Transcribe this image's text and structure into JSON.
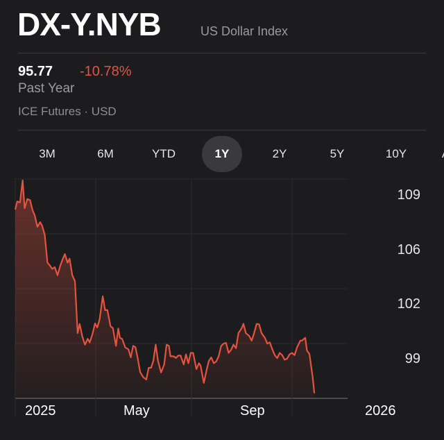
{
  "header": {
    "ticker": "DX-Y.NYB",
    "name": "US Dollar Index"
  },
  "quote": {
    "price": "95.77",
    "change": "-10.78%",
    "period": "Past Year",
    "exchange": "ICE Futures · USD"
  },
  "ranges": [
    {
      "label": "3M",
      "active": false
    },
    {
      "label": "6M",
      "active": false
    },
    {
      "label": "YTD",
      "active": false
    },
    {
      "label": "1Y",
      "active": true
    },
    {
      "label": "2Y",
      "active": false
    },
    {
      "label": "5Y",
      "active": false
    },
    {
      "label": "10Y",
      "active": false
    },
    {
      "label": "ALL",
      "active": false
    }
  ],
  "colors": {
    "line": "#e5533f",
    "negative": "#e5533f",
    "background": "#1c1c1e"
  },
  "chart_data": {
    "type": "area",
    "title": "",
    "xlabel": "",
    "ylabel": "",
    "x_tick_labels": [
      {
        "label": "2025",
        "date": "2025-01-01"
      },
      {
        "label": "May",
        "date": "2025-05-01"
      },
      {
        "label": "Sep",
        "date": "2025-09-01"
      },
      {
        "label": "2026",
        "date": "2026-01-01"
      }
    ],
    "y_tick_labels": [
      "109",
      "106",
      "102",
      "99"
    ],
    "grid": true,
    "series": [
      {
        "x": [
          "2025-01-01",
          "2025-01-04",
          "2025-01-08",
          "2025-01-12",
          "2025-01-15",
          "2025-01-19",
          "2025-01-23",
          "2025-01-27",
          "2025-01-30",
          "2025-02-03",
          "2025-02-07",
          "2025-02-10",
          "2025-02-14",
          "2025-02-18",
          "2025-02-21",
          "2025-02-25",
          "2025-03-01",
          "2025-03-05",
          "2025-03-09",
          "2025-03-12",
          "2025-03-16",
          "2025-03-20",
          "2025-03-23",
          "2025-03-27",
          "2025-03-31",
          "2025-04-04",
          "2025-04-07",
          "2025-04-11",
          "2025-04-15",
          "2025-04-19",
          "2025-04-22",
          "2025-04-26",
          "2025-04-30",
          "2025-05-03",
          "2025-05-06",
          "2025-05-10",
          "2025-05-13",
          "2025-05-16",
          "2025-05-20",
          "2025-05-23",
          "2025-05-27",
          "2025-05-30",
          "2025-06-01",
          "2025-06-04",
          "2025-06-08",
          "2025-06-12",
          "2025-06-15",
          "2025-06-18",
          "2025-06-21",
          "2025-06-24",
          "2025-06-27",
          "2025-07-01",
          "2025-07-05",
          "2025-07-08",
          "2025-07-11",
          "2025-07-14",
          "2025-07-17",
          "2025-07-20",
          "2025-07-24",
          "2025-07-28",
          "2025-07-31",
          "2025-08-03",
          "2025-08-05",
          "2025-08-09",
          "2025-08-12",
          "2025-08-15",
          "2025-08-18",
          "2025-08-22",
          "2025-08-25",
          "2025-08-28",
          "2025-08-31",
          "2025-09-03",
          "2025-09-07",
          "2025-09-10",
          "2025-09-12",
          "2025-09-16",
          "2025-09-19",
          "2025-09-22",
          "2025-09-25",
          "2025-09-28",
          "2025-10-01",
          "2025-10-04",
          "2025-10-07",
          "2025-10-10",
          "2025-10-13",
          "2025-10-16",
          "2025-10-19",
          "2025-10-22",
          "2025-10-25",
          "2025-10-28",
          "2025-11-01",
          "2025-11-03",
          "2025-11-06",
          "2025-11-10",
          "2025-11-13",
          "2025-11-16",
          "2025-11-19",
          "2025-11-22",
          "2025-11-25",
          "2025-11-29",
          "2025-12-02",
          "2025-12-05",
          "2025-12-08",
          "2025-12-11",
          "2025-12-14",
          "2025-12-17",
          "2025-12-20",
          "2025-12-23",
          "2025-12-26",
          "2025-12-29",
          "2026-01-01",
          "2026-01-04",
          "2026-01-07",
          "2026-01-11",
          "2026-01-13",
          "2026-01-17",
          "2026-01-19",
          "2026-01-22",
          "2026-01-26",
          "2026-01-28"
        ],
        "y": [
          108.06,
          108.6,
          108.53,
          110.0,
          108.14,
          108.76,
          108.68,
          107.99,
          107.68,
          106.9,
          107.21,
          106.98,
          106.36,
          104.5,
          104.35,
          104.09,
          104.2,
          103.66,
          104.28,
          104.66,
          105.08,
          104.5,
          104.77,
          103.66,
          103.27,
          99.79,
          100.41,
          99.56,
          99.02,
          99.41,
          99.17,
          99.71,
          100.44,
          100.17,
          100.71,
          102.26,
          101.33,
          101.33,
          100.25,
          100.13,
          98.94,
          100.1,
          99.48,
          99.4,
          98.83,
          98.71,
          98.17,
          98.94,
          98.86,
          98.09,
          97.19,
          96.85,
          96.69,
          97.47,
          97.47,
          97.93,
          99.02,
          97.93,
          97.16,
          97.7,
          99.02,
          98.94,
          98.24,
          98.24,
          98.13,
          98.29,
          98.29,
          97.7,
          98.37,
          97.78,
          98.47,
          98.47,
          97.39,
          97.78,
          97.62,
          96.46,
          97.24,
          97.93,
          98.17,
          97.78,
          97.9,
          98.24,
          98.94,
          99.09,
          99.14,
          98.47,
          98.67,
          99.02,
          98.78,
          99.79,
          100.13,
          100.41,
          99.79,
          99.6,
          99.29,
          99.79,
          100.41,
          100.38,
          99.79,
          99.48,
          99.09,
          99.17,
          98.71,
          98.32,
          98.12,
          98.47,
          98.32,
          98.01,
          98.09,
          98.37,
          98.47,
          98.32,
          98.83,
          99.29,
          99.29,
          99.48,
          98.63,
          98.4,
          96.85,
          95.77
        ]
      }
    ]
  }
}
